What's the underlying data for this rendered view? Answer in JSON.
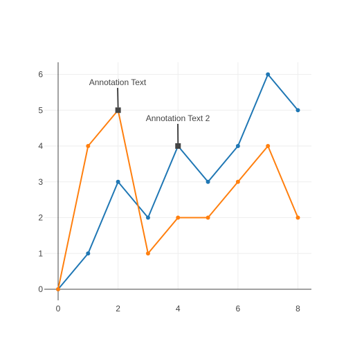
{
  "chart_data": {
    "type": "line",
    "title": "",
    "xlabel": "",
    "ylabel": "",
    "xlim": [
      0,
      8.4
    ],
    "ylim": [
      -0.1,
      6.2
    ],
    "x_ticks": [
      0,
      2,
      4,
      6,
      8
    ],
    "y_ticks": [
      0,
      1,
      2,
      3,
      4,
      5,
      6
    ],
    "grid": true,
    "legend": "none",
    "series": [
      {
        "color": "#1f77b4",
        "x": [
          0,
          1,
          2,
          3,
          4,
          5,
          6,
          7,
          8
        ],
        "y": [
          0,
          1,
          3,
          2,
          4,
          3,
          4,
          6,
          5
        ]
      },
      {
        "color": "#ff7f0e",
        "x": [
          0,
          1,
          2,
          3,
          4,
          5,
          6,
          7,
          8
        ],
        "y": [
          0,
          4,
          5,
          1,
          2,
          2,
          3,
          4,
          2
        ]
      }
    ],
    "annotations": [
      {
        "text": "Annotation Text",
        "x": 2,
        "y": 5,
        "color": "#444444"
      },
      {
        "text": "Annotation Text 2",
        "x": 4,
        "y": 4,
        "color": "#444444"
      }
    ]
  }
}
